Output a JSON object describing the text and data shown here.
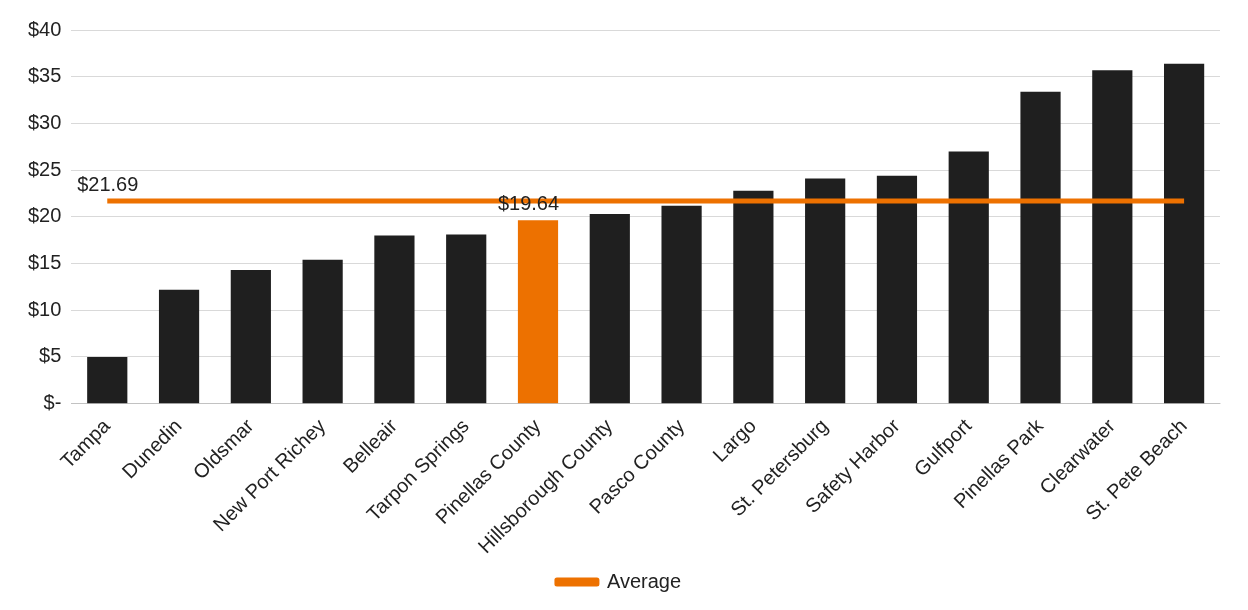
{
  "chart_data": {
    "type": "bar",
    "categories": [
      "Tampa",
      "Dunedin",
      "Oldsmar",
      "New Port Richey",
      "Belleair",
      "Tarpon Springs",
      "Pinellas County",
      "Hillsborough County",
      "Pasco County",
      "Largo",
      "St. Petersburg",
      "Safety Harbor",
      "Gulfport",
      "Pinellas Park",
      "Clearwater",
      "St. Pete Beach"
    ],
    "series": [
      {
        "colors": [
          "#1f1f1f",
          "#1f1f1f",
          "#1f1f1f",
          "#1f1f1f",
          "#1f1f1f",
          "#1f1f1f",
          "#ed7100",
          "#1f1f1f",
          "#1f1f1f",
          "#1f1f1f",
          "#1f1f1f",
          "#1f1f1f",
          "#1f1f1f",
          "#1f1f1f",
          "#1f1f1f",
          "#1f1f1f"
        ],
        "values": [
          5.0,
          12.2,
          14.3,
          15.4,
          18.0,
          18.1,
          19.64,
          20.3,
          21.2,
          22.8,
          24.1,
          24.4,
          27.0,
          33.4,
          35.7,
          36.4
        ]
      },
      {
        "type": "line",
        "name": "Average",
        "color": "#ed7100",
        "values": [
          21.69,
          21.69,
          21.69,
          21.69,
          21.69,
          21.69,
          21.69,
          21.69,
          21.69,
          21.69,
          21.69,
          21.69,
          21.69,
          21.69,
          21.69,
          21.69
        ]
      }
    ],
    "ylim": [
      0,
      40
    ],
    "yticks": [
      {
        "value": 0,
        "label": "$-"
      },
      {
        "value": 5,
        "label": "$5"
      },
      {
        "value": 10,
        "label": "$10"
      },
      {
        "value": 15,
        "label": "$15"
      },
      {
        "value": 20,
        "label": "$20"
      },
      {
        "value": 25,
        "label": "$25"
      },
      {
        "value": 30,
        "label": "$30"
      },
      {
        "value": 35,
        "label": "$35"
      },
      {
        "value": 40,
        "label": "$40"
      }
    ],
    "annotations": [
      {
        "text": "$21.69",
        "x": "Tampa",
        "y": 21.69
      },
      {
        "text": "$19.64",
        "x": "Pinellas County",
        "y": 19.64
      }
    ],
    "grid": "y",
    "legend": "bottom",
    "marker": "none"
  }
}
